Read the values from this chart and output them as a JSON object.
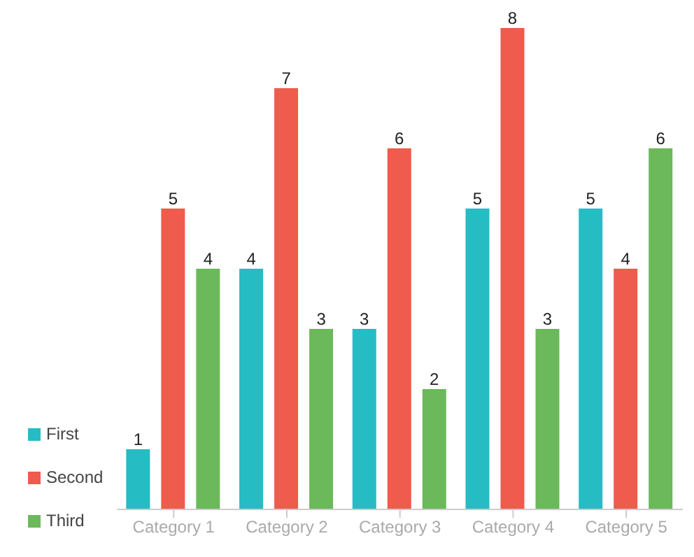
{
  "chart_data": {
    "type": "bar",
    "categories": [
      "Category 1",
      "Category 2",
      "Category 3",
      "Category 4",
      "Category 5"
    ],
    "series": [
      {
        "name": "First",
        "color": "#26bcc4",
        "values": [
          1,
          4,
          3,
          5,
          5
        ]
      },
      {
        "name": "Second",
        "color": "#ef5b4c",
        "values": [
          5,
          7,
          6,
          8,
          4
        ]
      },
      {
        "name": "Third",
        "color": "#6bb95a",
        "values": [
          4,
          3,
          2,
          3,
          6
        ]
      }
    ],
    "data_labels": true,
    "legend": "bottom left",
    "grid": false
  }
}
